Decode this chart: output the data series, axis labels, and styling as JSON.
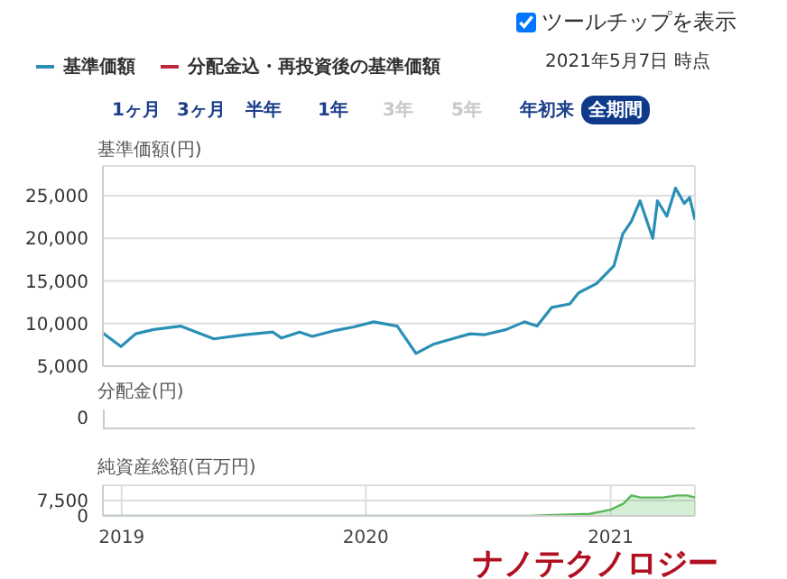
{
  "chart_data": [
    {
      "type": "line",
      "subtitle": "2021年5月7日 時点",
      "ylabel": "基準価額(円)",
      "legend": "top left",
      "grid": true,
      "tick_labels": "y",
      "annotations": [
        "ツールチップを表示",
        "1ヶ月",
        "3ヶ月",
        "半年",
        "1年",
        "3年",
        "5年",
        "年初来",
        "全期間"
      ],
      "xlim": [
        "2018-12-04",
        "2021-05-07"
      ],
      "xticks": [
        "2019",
        "2020",
        "2021"
      ],
      "ylim": [
        5000,
        28500
      ],
      "yticks": [
        {
          "value": 5000,
          "label": "5,000"
        },
        {
          "value": 10000,
          "label": "10,000"
        },
        {
          "value": 15000,
          "label": "15,000"
        },
        {
          "value": 20000,
          "label": "20,000"
        },
        {
          "value": 25000,
          "label": "25,000"
        }
      ],
      "series": [
        {
          "name": "基準価額",
          "color": "#2a8fb5",
          "x": [
            "2018-12-04",
            "2018-12-31",
            "2019-01-22",
            "2019-02-18",
            "2019-03-30",
            "2019-05-19",
            "2019-07-05",
            "2019-08-15",
            "2019-08-28",
            "2019-09-24",
            "2019-10-13",
            "2019-11-17",
            "2019-12-14",
            "2020-01-13",
            "2020-02-17",
            "2020-03-16",
            "2020-04-12",
            "2020-05-09",
            "2020-06-05",
            "2020-06-27",
            "2020-07-29",
            "2020-08-25",
            "2020-09-13",
            "2020-10-05",
            "2020-11-01",
            "2020-11-14",
            "2020-12-11",
            "2021-01-06",
            "2021-01-19",
            "2021-02-01",
            "2021-02-14",
            "2021-03-05",
            "2021-03-12",
            "2021-03-26",
            "2021-04-08",
            "2021-04-21",
            "2021-04-29",
            "2021-05-07"
          ],
          "values": [
            8900,
            7300,
            8800,
            9300,
            9700,
            8200,
            8700,
            9000,
            8300,
            9000,
            8500,
            9200,
            9600,
            10200,
            9700,
            6500,
            7600,
            8200,
            8800,
            8700,
            9300,
            10200,
            9700,
            11900,
            12300,
            13600,
            14700,
            16800,
            20500,
            22000,
            24400,
            20000,
            24400,
            22600,
            25900,
            24100,
            24800,
            22200
          ]
        },
        {
          "name": "分配金込・再投資後の基準価額",
          "color": "#c0273a"
        }
      ]
    },
    {
      "type": "other",
      "ylabel": "分配金(円)",
      "annotations": [
        "0"
      ]
    },
    {
      "type": "area",
      "ylabel": "純資産総額(百万円)",
      "grid": true,
      "annotations": [
        "ナノテクノロジー"
      ],
      "xlim": [
        "2018-12-04",
        "2021-05-07"
      ],
      "xticks": [
        "2019",
        "2020",
        "2021"
      ],
      "ylim": [
        0,
        15000
      ],
      "yticks": [
        0,
        {
          "value": 7500,
          "label": "7,500"
        },
        {
          "value": 15000,
          "label": null
        }
      ],
      "series": [
        {
          "color": "#5cb85c",
          "x": [
            "2018-12-04",
            "2019-06-01",
            "2020-01-01",
            "2020-09-01",
            "2020-12-01",
            "2021-01-01",
            "2021-01-20",
            "2021-02-01",
            "2021-02-15",
            "2021-03-01",
            "2021-03-20",
            "2021-04-10",
            "2021-04-25",
            "2021-05-07"
          ],
          "values": [
            0,
            0,
            0,
            0,
            1000,
            3000,
            6000,
            10000,
            9000,
            9000,
            9000,
            10000,
            10000,
            9000
          ]
        }
      ]
    }
  ]
}
